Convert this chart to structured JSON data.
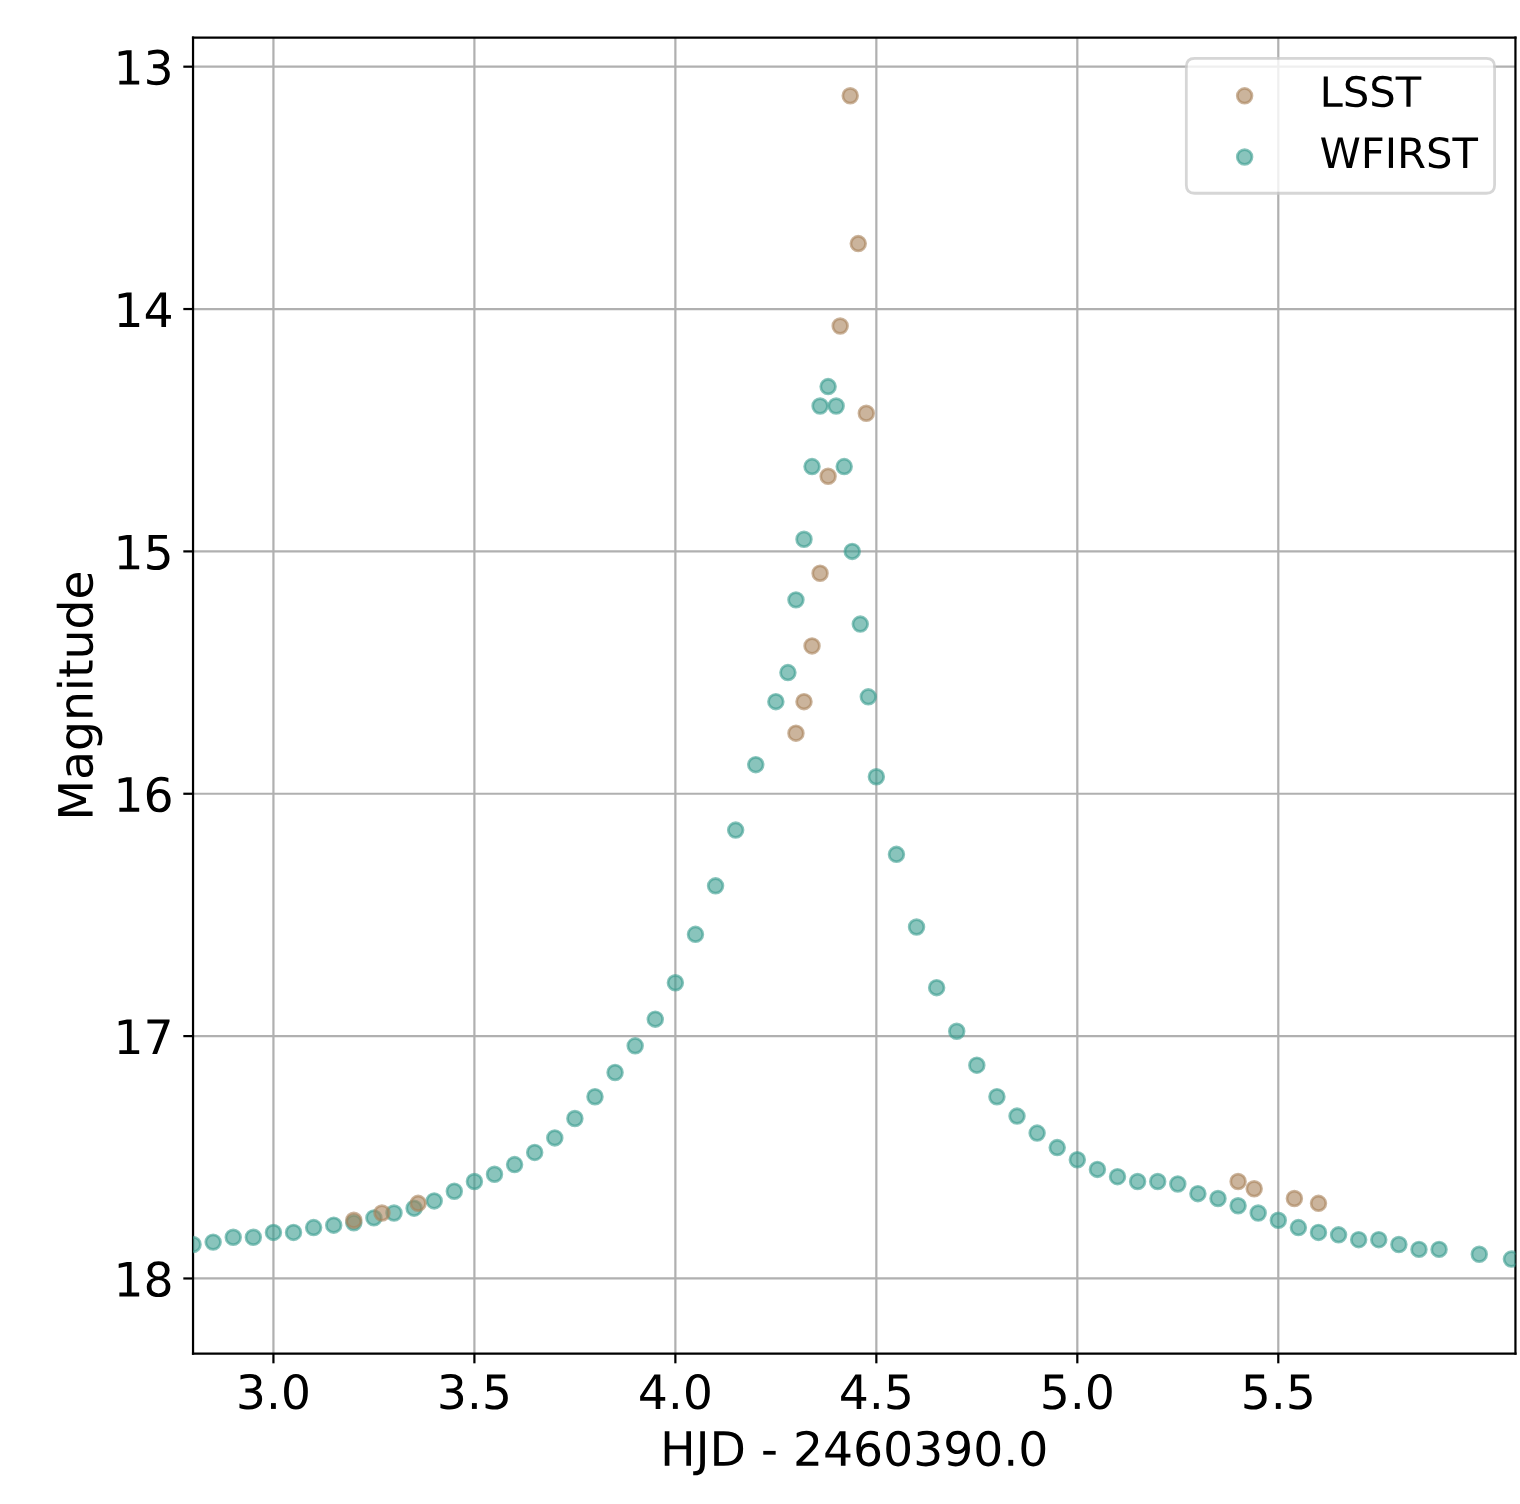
{
  "chart_data": {
    "type": "scatter",
    "xlabel": "HJD - 2460390.0",
    "ylabel": "Magnitude",
    "xlim": [
      2.8,
      6.09
    ],
    "ylim": [
      18.31,
      12.88
    ],
    "xticks": [
      {
        "value": 3,
        "label": "3.0"
      },
      3.5,
      {
        "value": 4,
        "label": "4.0"
      },
      4.5,
      {
        "value": 5,
        "label": "5.0"
      },
      5.5
    ],
    "yticks": [
      13,
      14,
      15,
      16,
      17,
      18
    ],
    "grid": true,
    "legend": "top right",
    "marker": "circle",
    "series": [
      {
        "name": "LSST",
        "color": "#a9825a",
        "x": [
          4.435,
          4.455,
          4.41,
          4.475,
          4.38,
          4.36,
          4.34,
          4.32,
          4.3,
          3.2,
          3.27,
          3.36,
          5.4,
          5.44,
          5.54,
          5.6
        ],
        "values": [
          13.12,
          13.73,
          14.07,
          14.43,
          14.69,
          15.09,
          15.39,
          15.62,
          15.75,
          17.76,
          17.73,
          17.69,
          17.6,
          17.63,
          17.67,
          17.69
        ]
      },
      {
        "name": "WFIRST",
        "color": "#3a9c8f",
        "x": [
          2.8,
          2.85,
          2.9,
          2.95,
          3.0,
          3.05,
          3.1,
          3.15,
          3.2,
          3.25,
          3.3,
          3.35,
          3.4,
          3.45,
          3.5,
          3.55,
          3.6,
          3.65,
          3.7,
          3.75,
          3.8,
          3.85,
          3.9,
          3.95,
          4.0,
          4.05,
          4.1,
          4.15,
          4.2,
          4.25,
          4.28,
          4.3,
          4.32,
          4.34,
          4.36,
          4.38,
          4.4,
          4.42,
          4.44,
          4.46,
          4.48,
          4.5,
          4.55,
          4.6,
          4.65,
          4.7,
          4.75,
          4.8,
          4.85,
          4.9,
          4.95,
          5.0,
          5.05,
          5.1,
          5.15,
          5.2,
          5.25,
          5.3,
          5.35,
          5.4,
          5.45,
          5.5,
          5.55,
          5.6,
          5.65,
          5.7,
          5.75,
          5.8,
          5.85,
          5.9,
          6.0,
          6.08
        ],
        "values": [
          17.86,
          17.85,
          17.83,
          17.83,
          17.81,
          17.81,
          17.79,
          17.78,
          17.77,
          17.75,
          17.73,
          17.71,
          17.68,
          17.64,
          17.6,
          17.57,
          17.53,
          17.48,
          17.42,
          17.34,
          17.25,
          17.15,
          17.04,
          16.93,
          16.78,
          16.58,
          16.38,
          16.15,
          15.88,
          15.62,
          15.5,
          15.2,
          14.95,
          14.65,
          14.4,
          14.32,
          14.4,
          14.65,
          15.0,
          15.3,
          15.6,
          15.93,
          16.25,
          16.55,
          16.8,
          16.98,
          17.12,
          17.25,
          17.33,
          17.4,
          17.46,
          17.51,
          17.55,
          17.58,
          17.6,
          17.6,
          17.61,
          17.65,
          17.67,
          17.7,
          17.73,
          17.76,
          17.79,
          17.81,
          17.82,
          17.84,
          17.84,
          17.86,
          17.88,
          17.88,
          17.9,
          17.92
        ]
      }
    ]
  }
}
